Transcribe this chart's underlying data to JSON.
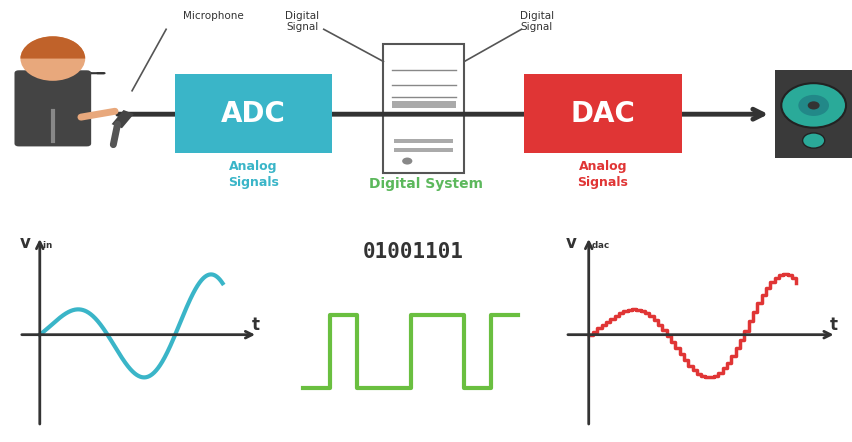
{
  "bg_color": "#ffffff",
  "adc_color": "#3ab5c8",
  "adc_text": "ADC",
  "dac_color": "#e03535",
  "dac_text": "DAC",
  "ds_text": "Digital System",
  "ds_color": "#5cb85c",
  "analog_signals_color": "#3ab5c8",
  "analog_signals_right_color": "#e03535",
  "analog_signals_text": "Analog\nSignals",
  "digital_signal_text": "Digital\nSignal",
  "microphone_text": "Microphone",
  "sin_color": "#3ab5c8",
  "digital_color": "#6abf40",
  "dac_wave_color": "#e03535",
  "t_label": "t",
  "binary_text": "01001101",
  "binary_color": "#333333",
  "line_color": "#333333",
  "arrow_color": "#333333"
}
